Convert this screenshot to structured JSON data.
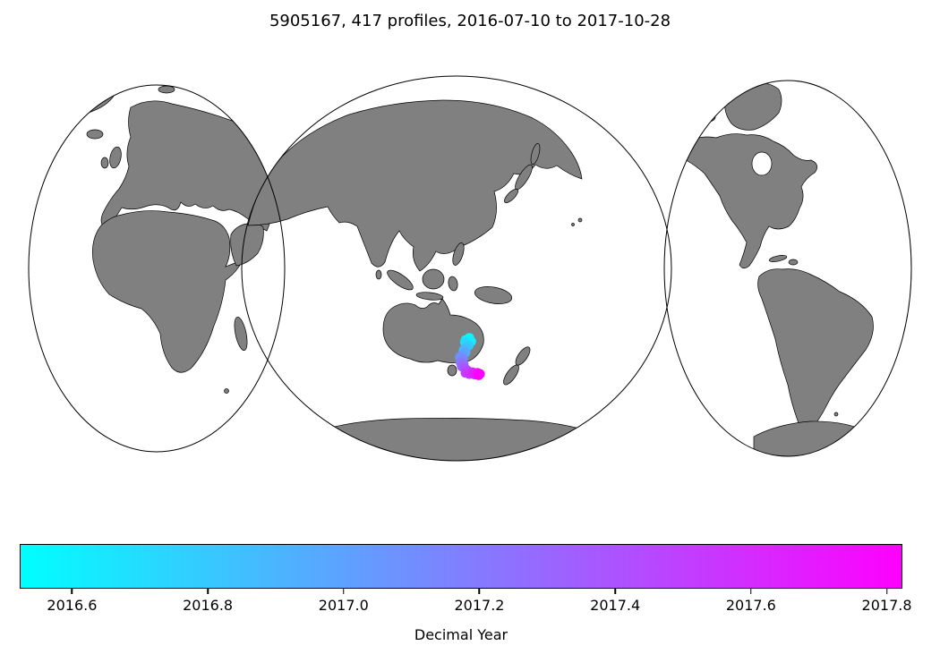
{
  "figure": {
    "title": "5905167, 417 profiles, 2016-07-10 to 2017-10-28",
    "background_color": "#ffffff"
  },
  "map": {
    "projection": "interrupted-goode-homolosine",
    "land_color": "#808080",
    "ocean_color": "#ffffff",
    "coastline_color": "#000000"
  },
  "chart_data": {
    "type": "scatter",
    "title": "5905167, 417 profiles, 2016-07-10 to 2017-10-28",
    "float_id": "5905167",
    "n_profiles": 417,
    "date_start": "2016-07-10",
    "date_end": "2017-10-28",
    "colorbar": {
      "label": "Decimal Year",
      "orientation": "horizontal",
      "cmap": "cool",
      "cmap_start_color": "#00ffff",
      "cmap_end_color": "#ff00ff",
      "vmin": 2016.523,
      "vmax": 2017.823,
      "ticks": [
        2016.6,
        2016.8,
        2017.0,
        2017.2,
        2017.4,
        2017.6,
        2017.8
      ]
    },
    "series": [
      {
        "name": "profile-positions",
        "region": "south of Tasmania, Australia",
        "marker_color_by": "decimal_year",
        "points": [
          {
            "lon": 147.0,
            "lat": -41.2,
            "year": 2016.53
          },
          {
            "lon": 147.6,
            "lat": -40.8,
            "year": 2016.57
          },
          {
            "lon": 147.9,
            "lat": -41.4,
            "year": 2016.62
          },
          {
            "lon": 147.3,
            "lat": -41.9,
            "year": 2016.67
          },
          {
            "lon": 146.9,
            "lat": -41.5,
            "year": 2016.72
          },
          {
            "lon": 147.5,
            "lat": -42.1,
            "year": 2016.78
          },
          {
            "lon": 147.1,
            "lat": -42.5,
            "year": 2016.84
          },
          {
            "lon": 146.7,
            "lat": -42.9,
            "year": 2016.9
          },
          {
            "lon": 147.0,
            "lat": -43.3,
            "year": 2016.96
          },
          {
            "lon": 146.5,
            "lat": -43.7,
            "year": 2017.02
          },
          {
            "lon": 146.1,
            "lat": -44.1,
            "year": 2017.08
          },
          {
            "lon": 146.6,
            "lat": -44.5,
            "year": 2017.14
          },
          {
            "lon": 146.2,
            "lat": -45.0,
            "year": 2017.2
          },
          {
            "lon": 146.7,
            "lat": -45.3,
            "year": 2017.26
          },
          {
            "lon": 146.4,
            "lat": -45.7,
            "year": 2017.32
          },
          {
            "lon": 146.9,
            "lat": -46.0,
            "year": 2017.38
          },
          {
            "lon": 147.3,
            "lat": -46.4,
            "year": 2017.44
          },
          {
            "lon": 147.0,
            "lat": -46.8,
            "year": 2017.5
          },
          {
            "lon": 147.6,
            "lat": -47.0,
            "year": 2017.56
          },
          {
            "lon": 148.1,
            "lat": -46.7,
            "year": 2017.62
          },
          {
            "lon": 148.5,
            "lat": -47.1,
            "year": 2017.68
          },
          {
            "lon": 148.9,
            "lat": -46.8,
            "year": 2017.74
          },
          {
            "lon": 149.3,
            "lat": -47.0,
            "year": 2017.79
          },
          {
            "lon": 149.1,
            "lat": -47.2,
            "year": 2017.82
          }
        ]
      }
    ]
  }
}
